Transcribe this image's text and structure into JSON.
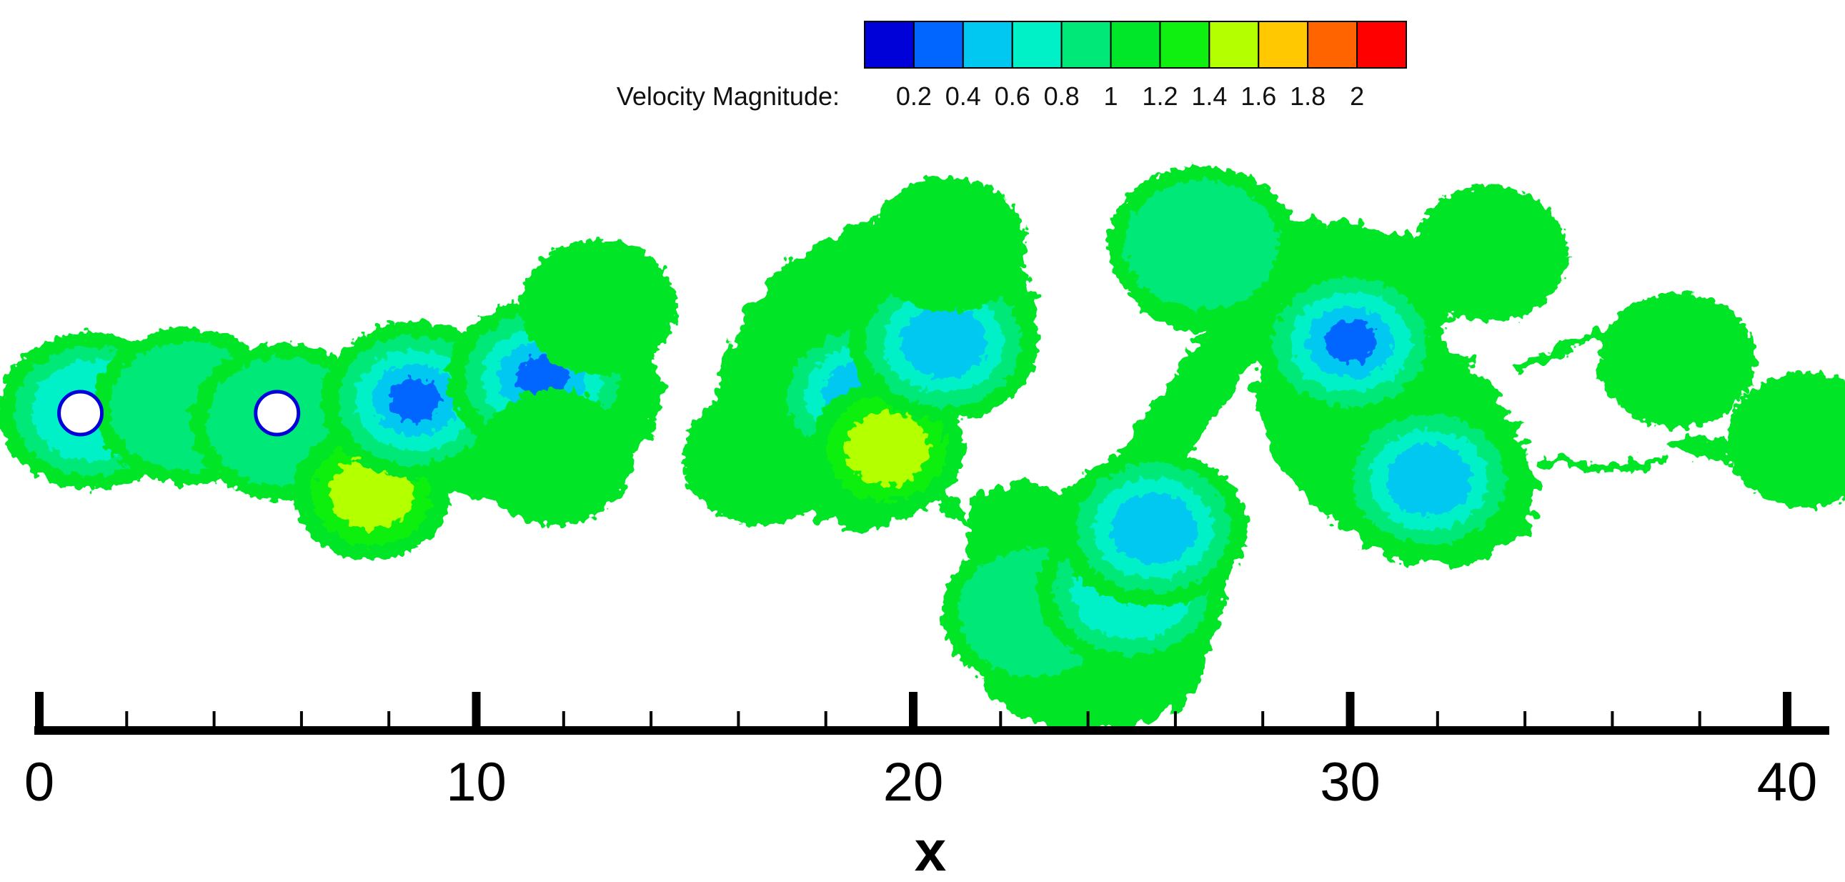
{
  "chart_data": {
    "type": "heatmap",
    "title": "",
    "xlabel": "x",
    "ylabel": "",
    "xlim": [
      0,
      41
    ],
    "x_ticks": [
      0,
      10,
      20,
      30,
      40
    ],
    "x_minor_step": 2,
    "grid": false,
    "colorbar": {
      "label": "Velocity Magnitude:",
      "tick_labels": [
        "0.2",
        "0.4",
        "0.6",
        "0.8",
        "1",
        "1.2",
        "1.4",
        "1.6",
        "1.8",
        "2"
      ],
      "bins": [
        {
          "from": 0.1,
          "to": 0.3,
          "color": "#0000d8"
        },
        {
          "from": 0.3,
          "to": 0.5,
          "color": "#0066ff"
        },
        {
          "from": 0.5,
          "to": 0.7,
          "color": "#00c8f0"
        },
        {
          "from": 0.7,
          "to": 0.9,
          "color": "#00f0c8"
        },
        {
          "from": 0.9,
          "to": 1.1,
          "color": "#00e878"
        },
        {
          "from": 1.1,
          "to": 1.3,
          "color": "#00e628"
        },
        {
          "from": 1.3,
          "to": 1.5,
          "color": "#10f010"
        },
        {
          "from": 1.5,
          "to": 1.7,
          "color": "#b4ff00"
        },
        {
          "from": 1.7,
          "to": 1.9,
          "color": "#ffc800"
        },
        {
          "from": 1.9,
          "to": 2.1,
          "color": "#ff6400"
        },
        {
          "from": 2.1,
          "to": 2.3,
          "color": "#ff0000"
        }
      ]
    },
    "cylinders_x": [
      0.5,
      5.0
    ],
    "field_blobs": [
      {
        "x": 1.2,
        "y": 0.05,
        "value": 0.8
      },
      {
        "x": 3.4,
        "y": 0.15,
        "value": 1.0
      },
      {
        "x": 5.6,
        "y": -0.2,
        "value": 1.0
      },
      {
        "x": 7.6,
        "y": -1.8,
        "value": 1.6
      },
      {
        "x": 8.6,
        "y": 0.3,
        "value": 0.3
      },
      {
        "x": 11.5,
        "y": 0.8,
        "value": 0.3
      },
      {
        "x": 11.8,
        "y": -1.0,
        "value": 1.2
      },
      {
        "x": 12.8,
        "y": 2.4,
        "value": 1.2
      },
      {
        "x": 16.5,
        "y": -1.0,
        "value": 1.2
      },
      {
        "x": 18.9,
        "y": 0.4,
        "value": 0.5
      },
      {
        "x": 19.4,
        "y": -0.8,
        "value": 1.6
      },
      {
        "x": 20.7,
        "y": 1.6,
        "value": 0.6
      },
      {
        "x": 20.8,
        "y": 3.8,
        "value": 1.2
      },
      {
        "x": 22.8,
        "y": -4.5,
        "value": 1.0
      },
      {
        "x": 25.0,
        "y": -4.0,
        "value": 0.8
      },
      {
        "x": 25.5,
        "y": -2.6,
        "value": 0.5
      },
      {
        "x": 26.6,
        "y": 3.8,
        "value": 0.9
      },
      {
        "x": 30.0,
        "y": 1.6,
        "value": 0.4
      },
      {
        "x": 31.8,
        "y": -1.5,
        "value": 0.6
      },
      {
        "x": 33.2,
        "y": 3.6,
        "value": 1.2
      },
      {
        "x": 37.5,
        "y": 1.2,
        "value": 1.2
      },
      {
        "x": 40.4,
        "y": -0.6,
        "value": 1.2
      }
    ]
  }
}
